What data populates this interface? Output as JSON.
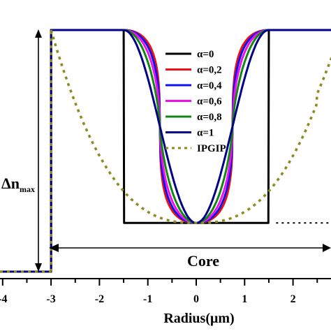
{
  "chart_data": {
    "type": "line",
    "title": "",
    "xlabel": "Radius(μm)",
    "ylabel": "",
    "xlim": [
      -4,
      3.5
    ],
    "ylim": [
      0,
      1.24
    ],
    "x_ticks": [
      -4,
      -3,
      -2,
      -1,
      0,
      1,
      2,
      3
    ],
    "x_tick_labels": [
      "-4",
      "-3",
      "-2",
      "-1",
      "0",
      "1",
      "2",
      "3"
    ],
    "grid": false,
    "legend_position": "top-right",
    "core_radius": 1.5,
    "cladding_radius": 3.0,
    "series": [
      {
        "name": "α=0",
        "alpha": 0,
        "color": "#000000",
        "style": "solid"
      },
      {
        "name": "α=0,2",
        "alpha": 0.2,
        "color": "#ee1111",
        "style": "solid"
      },
      {
        "name": "α=0,4",
        "alpha": 0.4,
        "color": "#1111ee",
        "style": "solid"
      },
      {
        "name": "α=0,6",
        "alpha": 0.6,
        "color": "#ee11ee",
        "style": "solid"
      },
      {
        "name": "α=0,8",
        "alpha": 0.8,
        "color": "#118811",
        "style": "solid"
      },
      {
        "name": "α=1",
        "alpha": 1,
        "color": "#000088",
        "style": "solid"
      },
      {
        "name": "IPGIP",
        "alpha": null,
        "color": "#8b8b22",
        "style": "dotted"
      }
    ],
    "annotations": {
      "delta_n_main": "Δn",
      "delta_n_sub": "max",
      "core_label": "Core"
    }
  }
}
